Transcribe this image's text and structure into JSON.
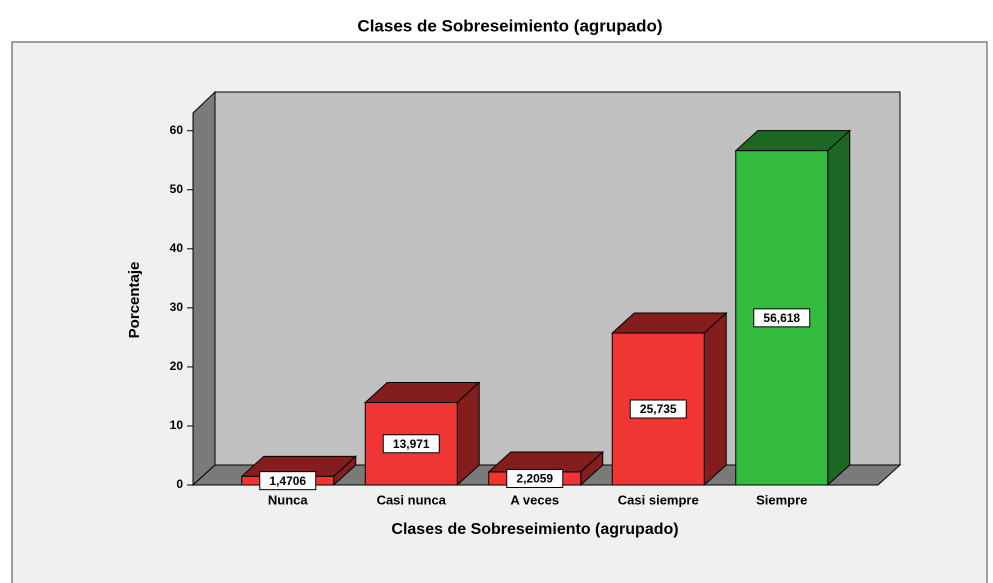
{
  "chart_data": {
    "type": "bar3d",
    "title": "Clases de Sobreseimiento (agrupado)",
    "x_label": "Clases de Sobreseimiento (agrupado)",
    "y_label": "Porcentaje",
    "categories": [
      "Nunca",
      "Casi nunca",
      "A veces",
      "Casi siempre",
      "Siempre"
    ],
    "values": [
      1.4706,
      13.971,
      2.2059,
      25.735,
      56.618
    ],
    "value_labels": [
      "1,4706",
      "13,971",
      "2,2059",
      "25,735",
      "56,618"
    ],
    "colors": [
      "#f03535",
      "#f03535",
      "#f03535",
      "#f03535",
      "#33bb40"
    ],
    "ylim": [
      0,
      63
    ],
    "yticks": [
      0,
      10,
      20,
      30,
      40,
      50,
      60
    ]
  }
}
